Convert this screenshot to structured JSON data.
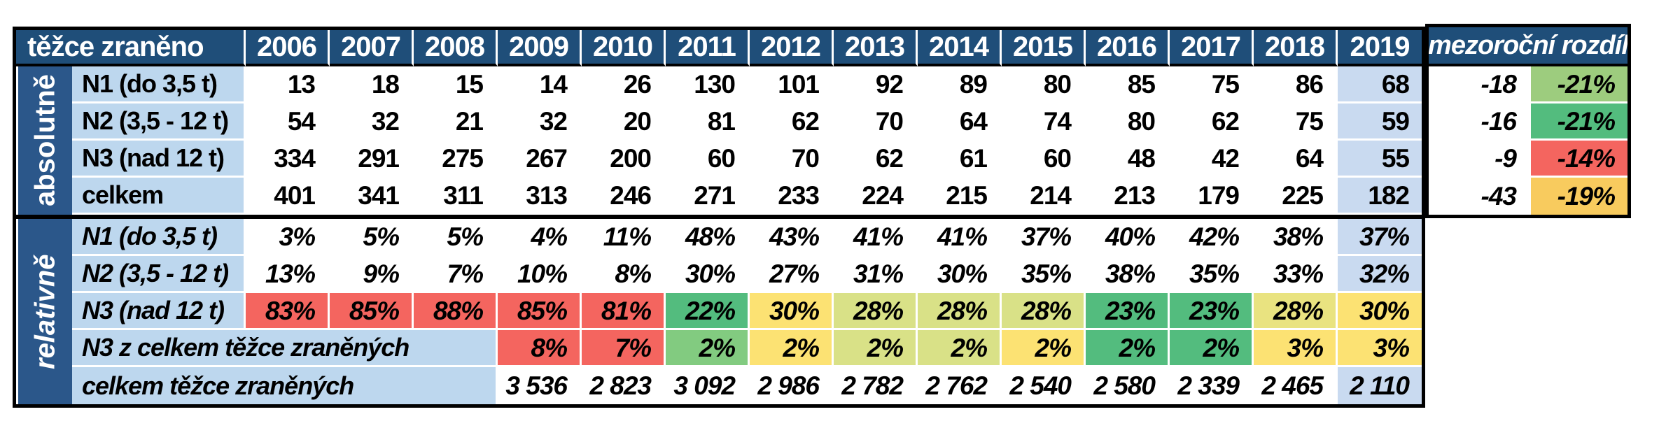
{
  "header": {
    "row_label": "těžce zraněno",
    "years": [
      "2006",
      "2007",
      "2008",
      "2009",
      "2010",
      "2011",
      "2012",
      "2013",
      "2014",
      "2015",
      "2016",
      "2017",
      "2018",
      "2019"
    ],
    "diff_label": "mezoroční rozdíl"
  },
  "sections": [
    {
      "id": "absolute",
      "side_label": "absolutně",
      "rows": [
        {
          "label": "N1 (do 3,5 t)",
          "values": [
            "13",
            "18",
            "15",
            "14",
            "26",
            "130",
            "101",
            "92",
            "89",
            "80",
            "85",
            "75",
            "86",
            "68"
          ],
          "highlight_2019": true,
          "diff": "-18",
          "diff_pct": "-21%",
          "diff_color": "greenLight"
        },
        {
          "label": "N2 (3,5 - 12 t)",
          "values": [
            "54",
            "32",
            "21",
            "32",
            "20",
            "81",
            "62",
            "70",
            "64",
            "74",
            "80",
            "62",
            "75",
            "59"
          ],
          "highlight_2019": true,
          "diff": "-16",
          "diff_pct": "-21%",
          "diff_color": "green"
        },
        {
          "label": "N3 (nad 12 t)",
          "values": [
            "334",
            "291",
            "275",
            "267",
            "200",
            "60",
            "70",
            "62",
            "61",
            "60",
            "48",
            "42",
            "64",
            "55"
          ],
          "highlight_2019": true,
          "diff": "-9",
          "diff_pct": "-14%",
          "diff_color": "red"
        },
        {
          "label": "celkem",
          "values": [
            "401",
            "341",
            "311",
            "313",
            "246",
            "271",
            "233",
            "224",
            "215",
            "214",
            "213",
            "179",
            "225",
            "182"
          ],
          "highlight_2019": true,
          "diff": "-43",
          "diff_pct": "-19%",
          "diff_color": "gold"
        }
      ]
    },
    {
      "id": "relative",
      "side_label": "relativně",
      "rows": [
        {
          "label": "N1 (do 3,5 t)",
          "values": [
            "3%",
            "5%",
            "5%",
            "4%",
            "11%",
            "48%",
            "43%",
            "41%",
            "41%",
            "37%",
            "40%",
            "42%",
            "38%",
            "37%"
          ],
          "highlight_2019": true
        },
        {
          "label": "N2 (3,5 - 12 t)",
          "values": [
            "13%",
            "9%",
            "7%",
            "10%",
            "8%",
            "30%",
            "27%",
            "31%",
            "30%",
            "35%",
            "38%",
            "35%",
            "33%",
            "32%"
          ],
          "highlight_2019": true
        },
        {
          "label": "N3 (nad 12 t)",
          "values": [
            "83%",
            "85%",
            "88%",
            "85%",
            "81%",
            "22%",
            "30%",
            "28%",
            "28%",
            "28%",
            "23%",
            "23%",
            "28%",
            "30%"
          ],
          "cell_colors": [
            "red",
            "red",
            "red",
            "red",
            "red",
            "green",
            "yellow",
            "yellowGreen",
            "yellowGreen",
            "yellowGreen",
            "green",
            "green",
            "yellowPale",
            "yellow"
          ]
        },
        {
          "label": "N3 z celkem těžce zraněných",
          "label_span": 4,
          "values": [
            null,
            null,
            null,
            "8%",
            "7%",
            "2%",
            "2%",
            "2%",
            "2%",
            "2%",
            "2%",
            "2%",
            "3%",
            "3%"
          ],
          "cell_colors": [
            null,
            null,
            null,
            "red",
            "red",
            "greenSoft",
            "yellow",
            "yellowGreen",
            "yellowGreen",
            "yellow",
            "green",
            "green",
            "yellow",
            "yellow"
          ]
        },
        {
          "label": "celkem těžce zraněných",
          "label_span": 4,
          "values": [
            null,
            null,
            null,
            "3 536",
            "2 823",
            "3 092",
            "2 986",
            "2 782",
            "2 762",
            "2 540",
            "2 580",
            "2 339",
            "2 465",
            "2 110"
          ],
          "highlight_2019": true
        }
      ]
    }
  ],
  "colors": {
    "headerBlue": "#1F4E79",
    "bandBlue": "#2B578A",
    "labelBlue": "#BDD7EE",
    "blue2019": "#C9DAF0",
    "red": "#F4655F",
    "green": "#53BC7E",
    "greenSoft": "#82CB80",
    "greenLight": "#9DCC7E",
    "yellow": "#FCE273",
    "yellowGreen": "#D9E187",
    "yellowPale": "#E9E380",
    "gold": "#F8CB5E"
  }
}
